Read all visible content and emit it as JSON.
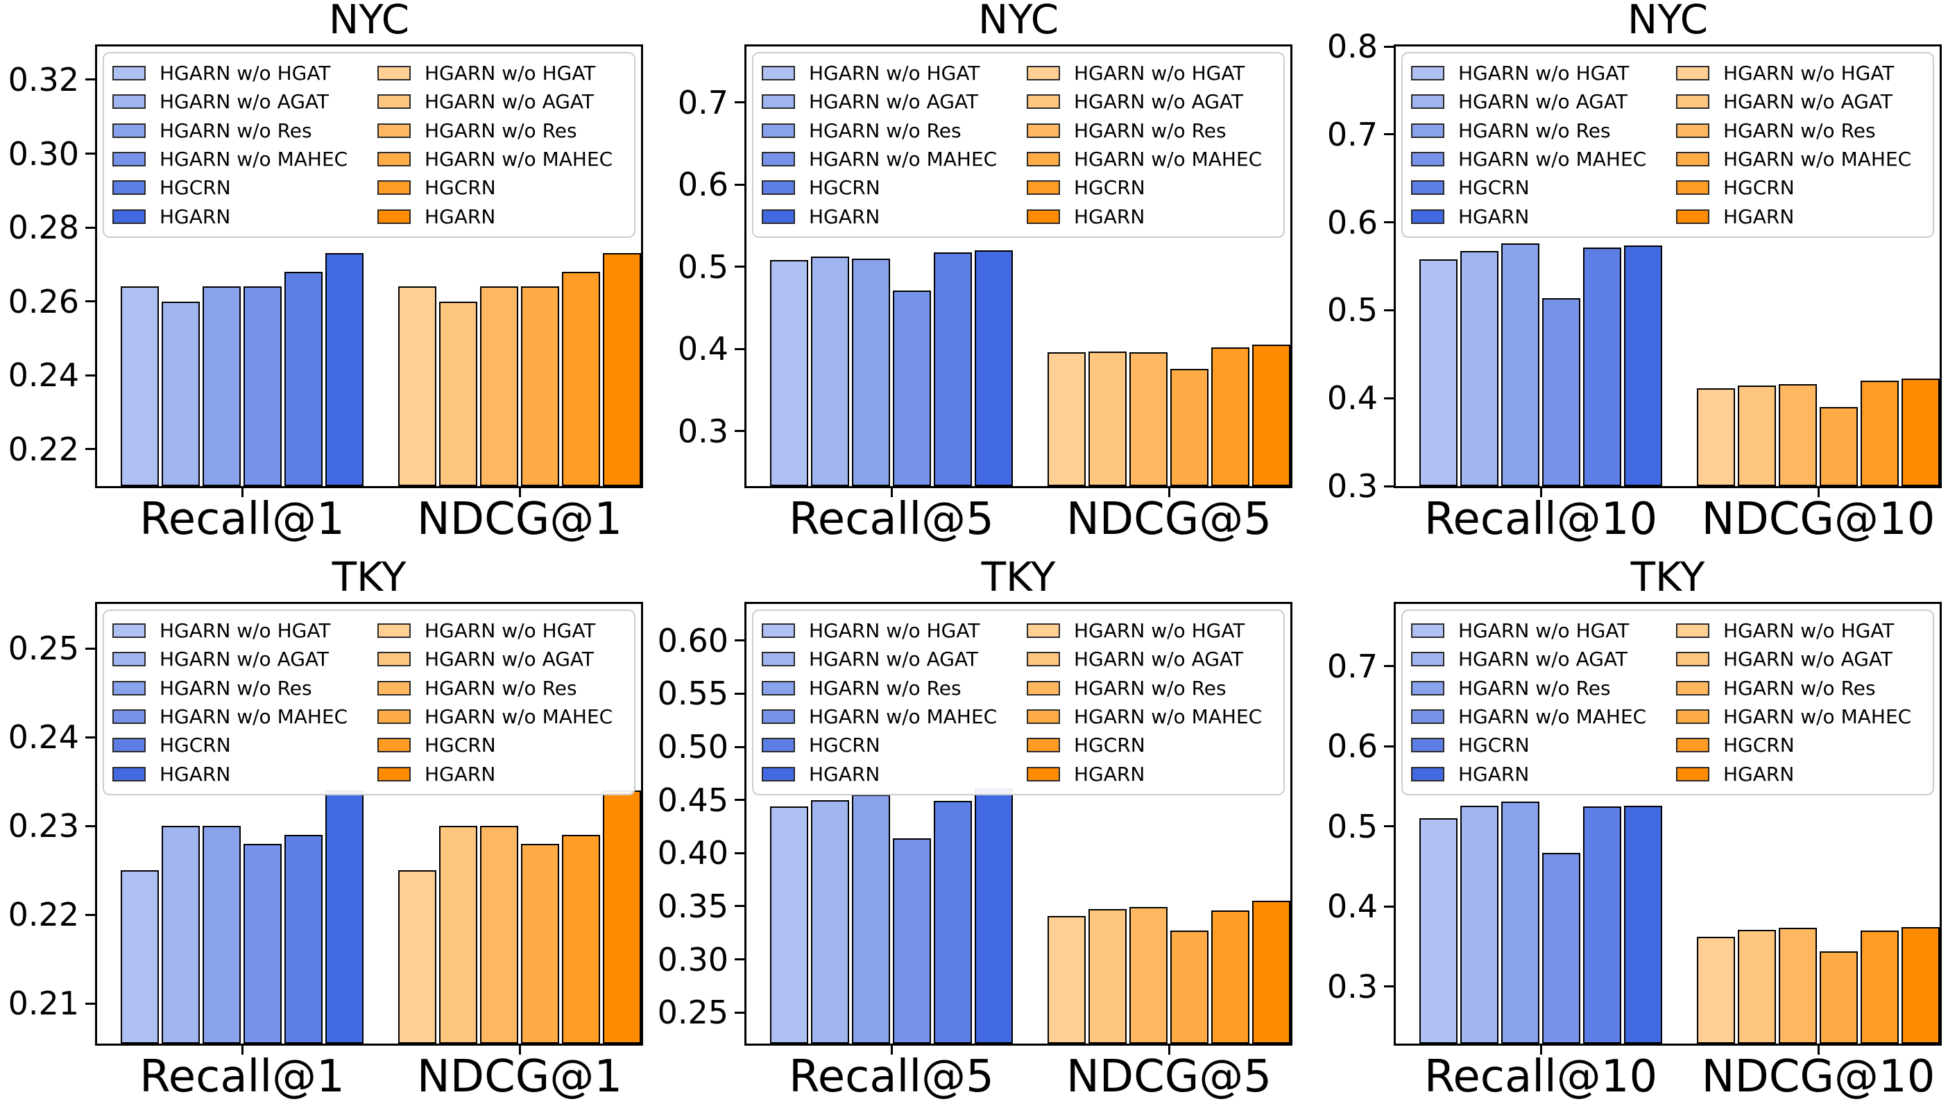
{
  "figure": {
    "rows": 2,
    "cols": 3,
    "background": "#ffffff"
  },
  "palette": {
    "blue": [
      "#AFC0F2",
      "#A0B4F0",
      "#89A2EC",
      "#7693E9",
      "#5C7EE5",
      "#4169E1"
    ],
    "orange": [
      "#FFCF94",
      "#FFC680",
      "#FFB861",
      "#FFAC47",
      "#FF9C24",
      "#FF8C00"
    ],
    "bar_edge": "#000000",
    "legend_border": "#cccccc",
    "text": "#000000"
  },
  "series_labels": [
    "HGARN w/o HGAT",
    "HGARN w/o AGAT",
    "HGARN w/o Res",
    "HGARN w/o MAHEC",
    "HGCRN",
    "HGARN"
  ],
  "chart_data": [
    {
      "type": "bar",
      "title": "NYC",
      "categories": [
        "Recall@1",
        "NDCG@1"
      ],
      "series": [
        {
          "name": "HGARN w/o HGAT",
          "values": [
            0.264,
            0.264
          ]
        },
        {
          "name": "HGARN w/o AGAT",
          "values": [
            0.26,
            0.26
          ]
        },
        {
          "name": "HGARN w/o Res",
          "values": [
            0.264,
            0.264
          ]
        },
        {
          "name": "HGARN w/o MAHEC",
          "values": [
            0.264,
            0.264
          ]
        },
        {
          "name": "HGCRN",
          "values": [
            0.268,
            0.268
          ]
        },
        {
          "name": "HGARN",
          "values": [
            0.273,
            0.273
          ]
        }
      ],
      "ylim": [
        0.21,
        0.329
      ],
      "ytick_values": [
        0.22,
        0.24,
        0.26,
        0.28,
        0.3,
        0.32
      ],
      "ytick_labels": [
        "0.22",
        "0.24",
        "0.26",
        "0.28",
        "0.30",
        "0.32"
      ],
      "grid": false,
      "legend_position": "upper-full-width"
    },
    {
      "type": "bar",
      "title": "NYC",
      "categories": [
        "Recall@5",
        "NDCG@5"
      ],
      "series": [
        {
          "name": "HGARN w/o HGAT",
          "values": [
            0.508,
            0.396
          ]
        },
        {
          "name": "HGARN w/o AGAT",
          "values": [
            0.512,
            0.397
          ]
        },
        {
          "name": "HGARN w/o Res",
          "values": [
            0.51,
            0.396
          ]
        },
        {
          "name": "HGARN w/o MAHEC",
          "values": [
            0.471,
            0.376
          ]
        },
        {
          "name": "HGCRN",
          "values": [
            0.517,
            0.402
          ]
        },
        {
          "name": "HGARN",
          "values": [
            0.52,
            0.405
          ]
        }
      ],
      "ylim": [
        0.233,
        0.768
      ],
      "ytick_values": [
        0.3,
        0.4,
        0.5,
        0.6,
        0.7
      ],
      "ytick_labels": [
        "0.3",
        "0.4",
        "0.5",
        "0.6",
        "0.7"
      ],
      "grid": false,
      "legend_position": "upper-full-width"
    },
    {
      "type": "bar",
      "title": "NYC",
      "categories": [
        "Recall@10",
        "NDCG@10"
      ],
      "series": [
        {
          "name": "HGARN w/o HGAT",
          "values": [
            0.558,
            0.411
          ]
        },
        {
          "name": "HGARN w/o AGAT",
          "values": [
            0.567,
            0.414
          ]
        },
        {
          "name": "HGARN w/o Res",
          "values": [
            0.576,
            0.416
          ]
        },
        {
          "name": "HGARN w/o MAHEC",
          "values": [
            0.514,
            0.39
          ]
        },
        {
          "name": "HGCRN",
          "values": [
            0.571,
            0.42
          ]
        },
        {
          "name": "HGARN",
          "values": [
            0.574,
            0.422
          ]
        }
      ],
      "ylim": [
        0.3,
        0.8
      ],
      "ytick_values": [
        0.3,
        0.4,
        0.5,
        0.6,
        0.7,
        0.8
      ],
      "ytick_labels": [
        "0.3",
        "0.4",
        "0.5",
        "0.6",
        "0.7",
        "0.8"
      ],
      "grid": false,
      "legend_position": "upper-full-width"
    },
    {
      "type": "bar",
      "title": "TKY",
      "categories": [
        "Recall@1",
        "NDCG@1"
      ],
      "series": [
        {
          "name": "HGARN w/o HGAT",
          "values": [
            0.225,
            0.225
          ]
        },
        {
          "name": "HGARN w/o AGAT",
          "values": [
            0.23,
            0.23
          ]
        },
        {
          "name": "HGARN w/o Res",
          "values": [
            0.23,
            0.23
          ]
        },
        {
          "name": "HGARN w/o MAHEC",
          "values": [
            0.228,
            0.228
          ]
        },
        {
          "name": "HGCRN",
          "values": [
            0.229,
            0.229
          ]
        },
        {
          "name": "HGARN",
          "values": [
            0.234,
            0.234
          ]
        }
      ],
      "ylim": [
        0.2055,
        0.255
      ],
      "ytick_values": [
        0.21,
        0.22,
        0.23,
        0.24,
        0.25
      ],
      "ytick_labels": [
        "0.21",
        "0.22",
        "0.23",
        "0.24",
        "0.25"
      ],
      "grid": false,
      "legend_position": "upper-full-width"
    },
    {
      "type": "bar",
      "title": "TKY",
      "categories": [
        "Recall@5",
        "NDCG@5"
      ],
      "series": [
        {
          "name": "HGARN w/o HGAT",
          "values": [
            0.444,
            0.341
          ]
        },
        {
          "name": "HGARN w/o AGAT",
          "values": [
            0.45,
            0.347
          ]
        },
        {
          "name": "HGARN w/o Res",
          "values": [
            0.455,
            0.349
          ]
        },
        {
          "name": "HGARN w/o MAHEC",
          "values": [
            0.414,
            0.327
          ]
        },
        {
          "name": "HGCRN",
          "values": [
            0.449,
            0.346
          ]
        },
        {
          "name": "HGARN",
          "values": [
            0.461,
            0.355
          ]
        }
      ],
      "ylim": [
        0.2207,
        0.6345
      ],
      "ytick_values": [
        0.25,
        0.3,
        0.35,
        0.4,
        0.45,
        0.5,
        0.55,
        0.6
      ],
      "ytick_labels": [
        "0.25",
        "0.30",
        "0.35",
        "0.40",
        "0.45",
        "0.50",
        "0.55",
        "0.60"
      ],
      "grid": false,
      "legend_position": "upper-full-width"
    },
    {
      "type": "bar",
      "title": "TKY",
      "categories": [
        "Recall@10",
        "NDCG@10"
      ],
      "series": [
        {
          "name": "HGARN w/o HGAT",
          "values": [
            0.51,
            0.362
          ]
        },
        {
          "name": "HGARN w/o AGAT",
          "values": [
            0.526,
            0.371
          ]
        },
        {
          "name": "HGARN w/o Res",
          "values": [
            0.531,
            0.373
          ]
        },
        {
          "name": "HGARN w/o MAHEC",
          "values": [
            0.467,
            0.344
          ]
        },
        {
          "name": "HGCRN",
          "values": [
            0.525,
            0.37
          ]
        },
        {
          "name": "HGARN",
          "values": [
            0.526,
            0.374
          ]
        }
      ],
      "ylim": [
        0.2285,
        0.778
      ],
      "ytick_values": [
        0.3,
        0.4,
        0.5,
        0.6,
        0.7
      ],
      "ytick_labels": [
        "0.3",
        "0.4",
        "0.5",
        "0.6",
        "0.7"
      ],
      "grid": false,
      "legend_position": "upper-full-width"
    }
  ]
}
